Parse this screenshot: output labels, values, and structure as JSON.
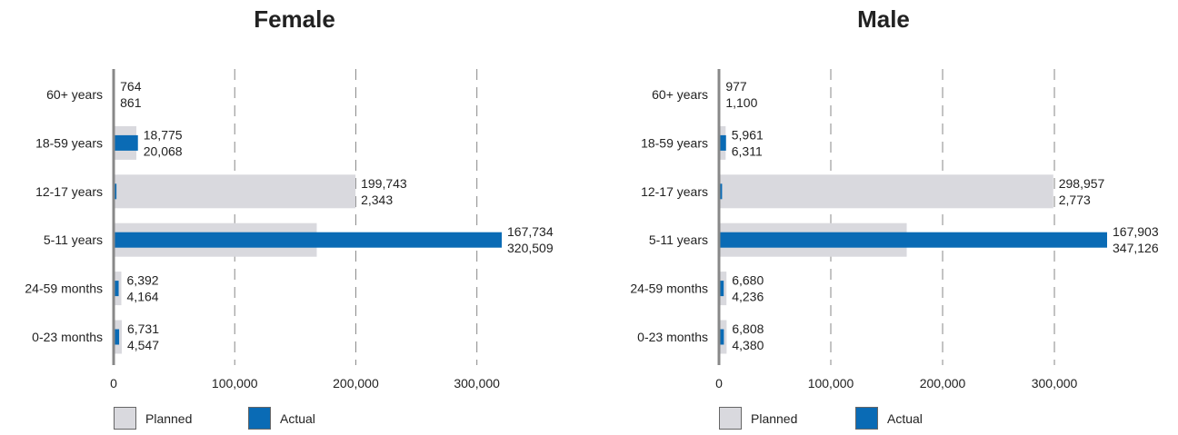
{
  "colors": {
    "planned": "#d9d9de",
    "actual": "#0a6bb5",
    "axis": "#888888",
    "grid": "#888888"
  },
  "legend": {
    "planned_label": "Planned",
    "actual_label": "Actual"
  },
  "chart_data": [
    {
      "type": "bar",
      "orientation": "horizontal",
      "title": "Female",
      "categories": [
        "60+ years",
        "18-59 years",
        "12-17 years",
        "5-11 years",
        "24-59 months",
        "0-23 months"
      ],
      "series": [
        {
          "name": "Planned",
          "values": [
            764,
            18775,
            199743,
            167734,
            6392,
            6731
          ]
        },
        {
          "name": "Actual",
          "values": [
            861,
            20068,
            2343,
            320509,
            4164,
            4547
          ]
        }
      ],
      "data_labels": {
        "planned": [
          "764",
          "18,775",
          "199,743",
          "167,734",
          "6,392",
          "6,731"
        ],
        "actual": [
          "861",
          "20,068",
          "2,343",
          "320,509",
          "4,164",
          "4,547"
        ]
      },
      "xlim": [
        0,
        320509
      ],
      "xticks": [
        0,
        100000,
        200000,
        300000
      ],
      "xtick_labels": [
        "0",
        "100,000",
        "200,000",
        "300,000"
      ],
      "grid": "vertical dashed",
      "legend_position": "bottom-left"
    },
    {
      "type": "bar",
      "orientation": "horizontal",
      "title": "Male",
      "categories": [
        "60+ years",
        "18-59 years",
        "12-17 years",
        "5-11 years",
        "24-59 months",
        "0-23 months"
      ],
      "series": [
        {
          "name": "Planned",
          "values": [
            977,
            5961,
            298957,
            167903,
            6680,
            6808
          ]
        },
        {
          "name": "Actual",
          "values": [
            1100,
            6311,
            2773,
            347126,
            4236,
            4380
          ]
        }
      ],
      "data_labels": {
        "planned": [
          "977",
          "5,961",
          "298,957",
          "167,903",
          "6,680",
          "6,808"
        ],
        "actual": [
          "1,100",
          "6,311",
          "2,773",
          "347,126",
          "4,236",
          "4,380"
        ]
      },
      "xlim": [
        0,
        347126
      ],
      "xticks": [
        0,
        100000,
        200000,
        300000
      ],
      "xtick_labels": [
        "0",
        "100,000",
        "200,000",
        "300,000"
      ],
      "grid": "vertical dashed",
      "legend_position": "bottom-left"
    }
  ]
}
